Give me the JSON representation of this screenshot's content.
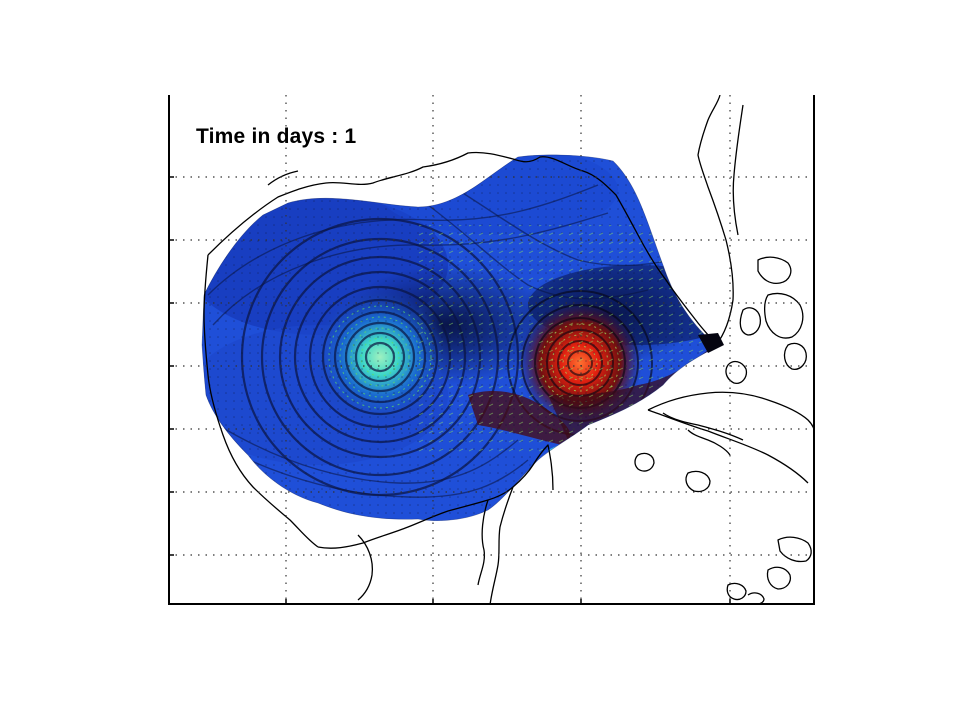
{
  "figure": {
    "time_label": "Time in days : 1",
    "grid": true,
    "grid_style": "dotted",
    "colormap": [
      "#0a1a8c",
      "#1f4fe0",
      "#1fa0ff",
      "#35e0d0",
      "#8fe04a",
      "#f0e020",
      "#ff6010",
      "#c00000"
    ],
    "colors": {
      "ocean_field_low": "#1f4fd8",
      "coastline": "#000000",
      "vector_arrows": "#90e060",
      "eddy_west_core": "#40e0c0",
      "eddy_east_core": "#ff5010"
    },
    "features": [
      "gulf-current-field",
      "west-eddy",
      "east-eddy",
      "velocity-vectors",
      "coastlines",
      "islands"
    ]
  }
}
